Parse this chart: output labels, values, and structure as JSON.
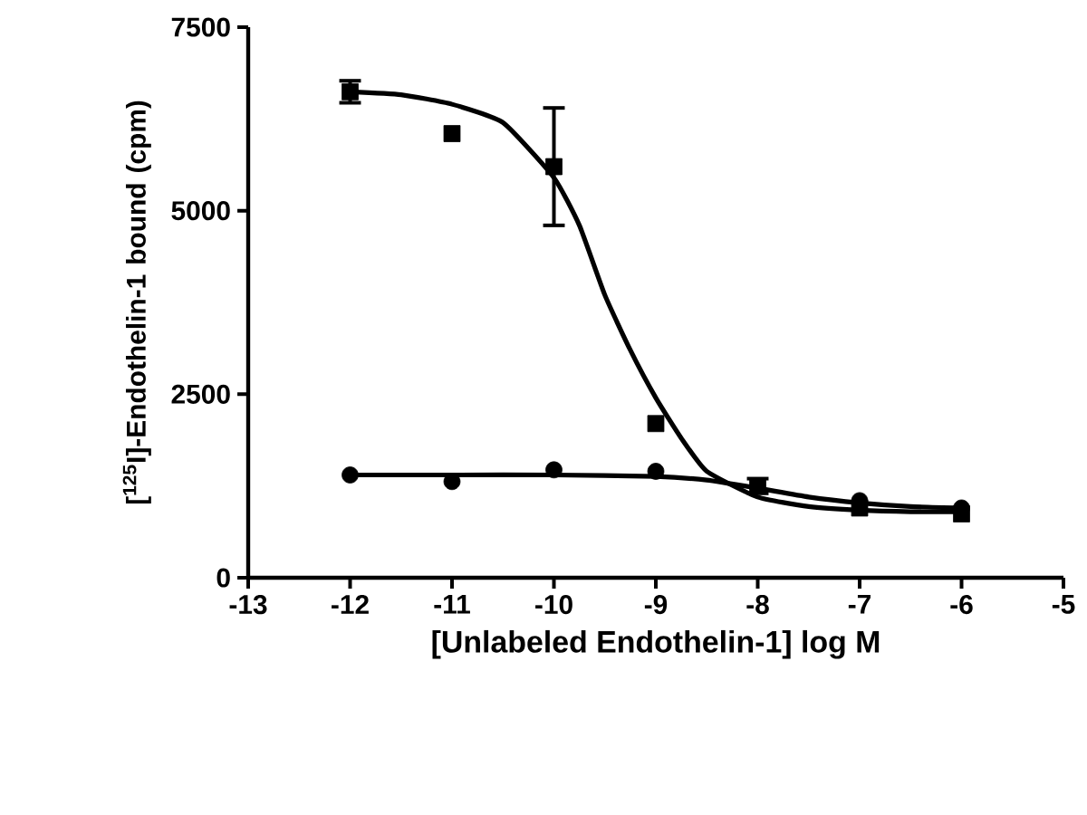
{
  "chart_data": {
    "type": "scatter",
    "xlabel": "[Unlabeled Endothelin-1] log M",
    "ylabel": "[$^{125}$I]-Endothelin-1 bound (cpm)",
    "xlim": [
      -13,
      -5
    ],
    "xticks": [
      -13,
      -12,
      -11,
      -10,
      -9,
      -8,
      -7,
      -6,
      -5
    ],
    "ylim": [
      0,
      7500
    ],
    "yticks": [
      0,
      2500,
      5000,
      7500
    ],
    "grid": false,
    "series": [
      {
        "marker": "square",
        "color": "#000000",
        "x": [
          -12,
          -11,
          -10,
          -9,
          -8,
          -7,
          -6
        ],
        "values": [
          6620,
          6050,
          5600,
          2100,
          1250,
          950,
          870
        ],
        "errors": [
          150,
          null,
          800,
          null,
          100,
          null,
          null
        ]
      },
      {
        "marker": "circle",
        "color": "#000000",
        "x": [
          -12,
          -11,
          -10,
          -9,
          -8,
          -7,
          -6
        ],
        "values": [
          1400,
          1310,
          1470,
          1450,
          null,
          1050,
          950
        ]
      },
      {
        "type": "line",
        "marker": "none",
        "color": "#000000",
        "x": [
          -12,
          -11.5,
          -11,
          -10.5,
          -10,
          -9.75,
          -9.5,
          -9.25,
          -9,
          -8.75,
          -8.5,
          -8,
          -7.5,
          -7,
          -6.5,
          -6
        ],
        "values": [
          6620,
          6580,
          6450,
          6200,
          5450,
          4800,
          3850,
          3100,
          2450,
          1900,
          1450,
          1100,
          970,
          920,
          900,
          900
        ]
      },
      {
        "type": "line",
        "marker": "none",
        "color": "#000000",
        "x": [
          -12,
          -11,
          -10,
          -9,
          -8.5,
          -8,
          -7.5,
          -7,
          -6.5,
          -6
        ],
        "values": [
          1400,
          1400,
          1400,
          1380,
          1330,
          1220,
          1100,
          1020,
          970,
          950
        ]
      }
    ]
  }
}
